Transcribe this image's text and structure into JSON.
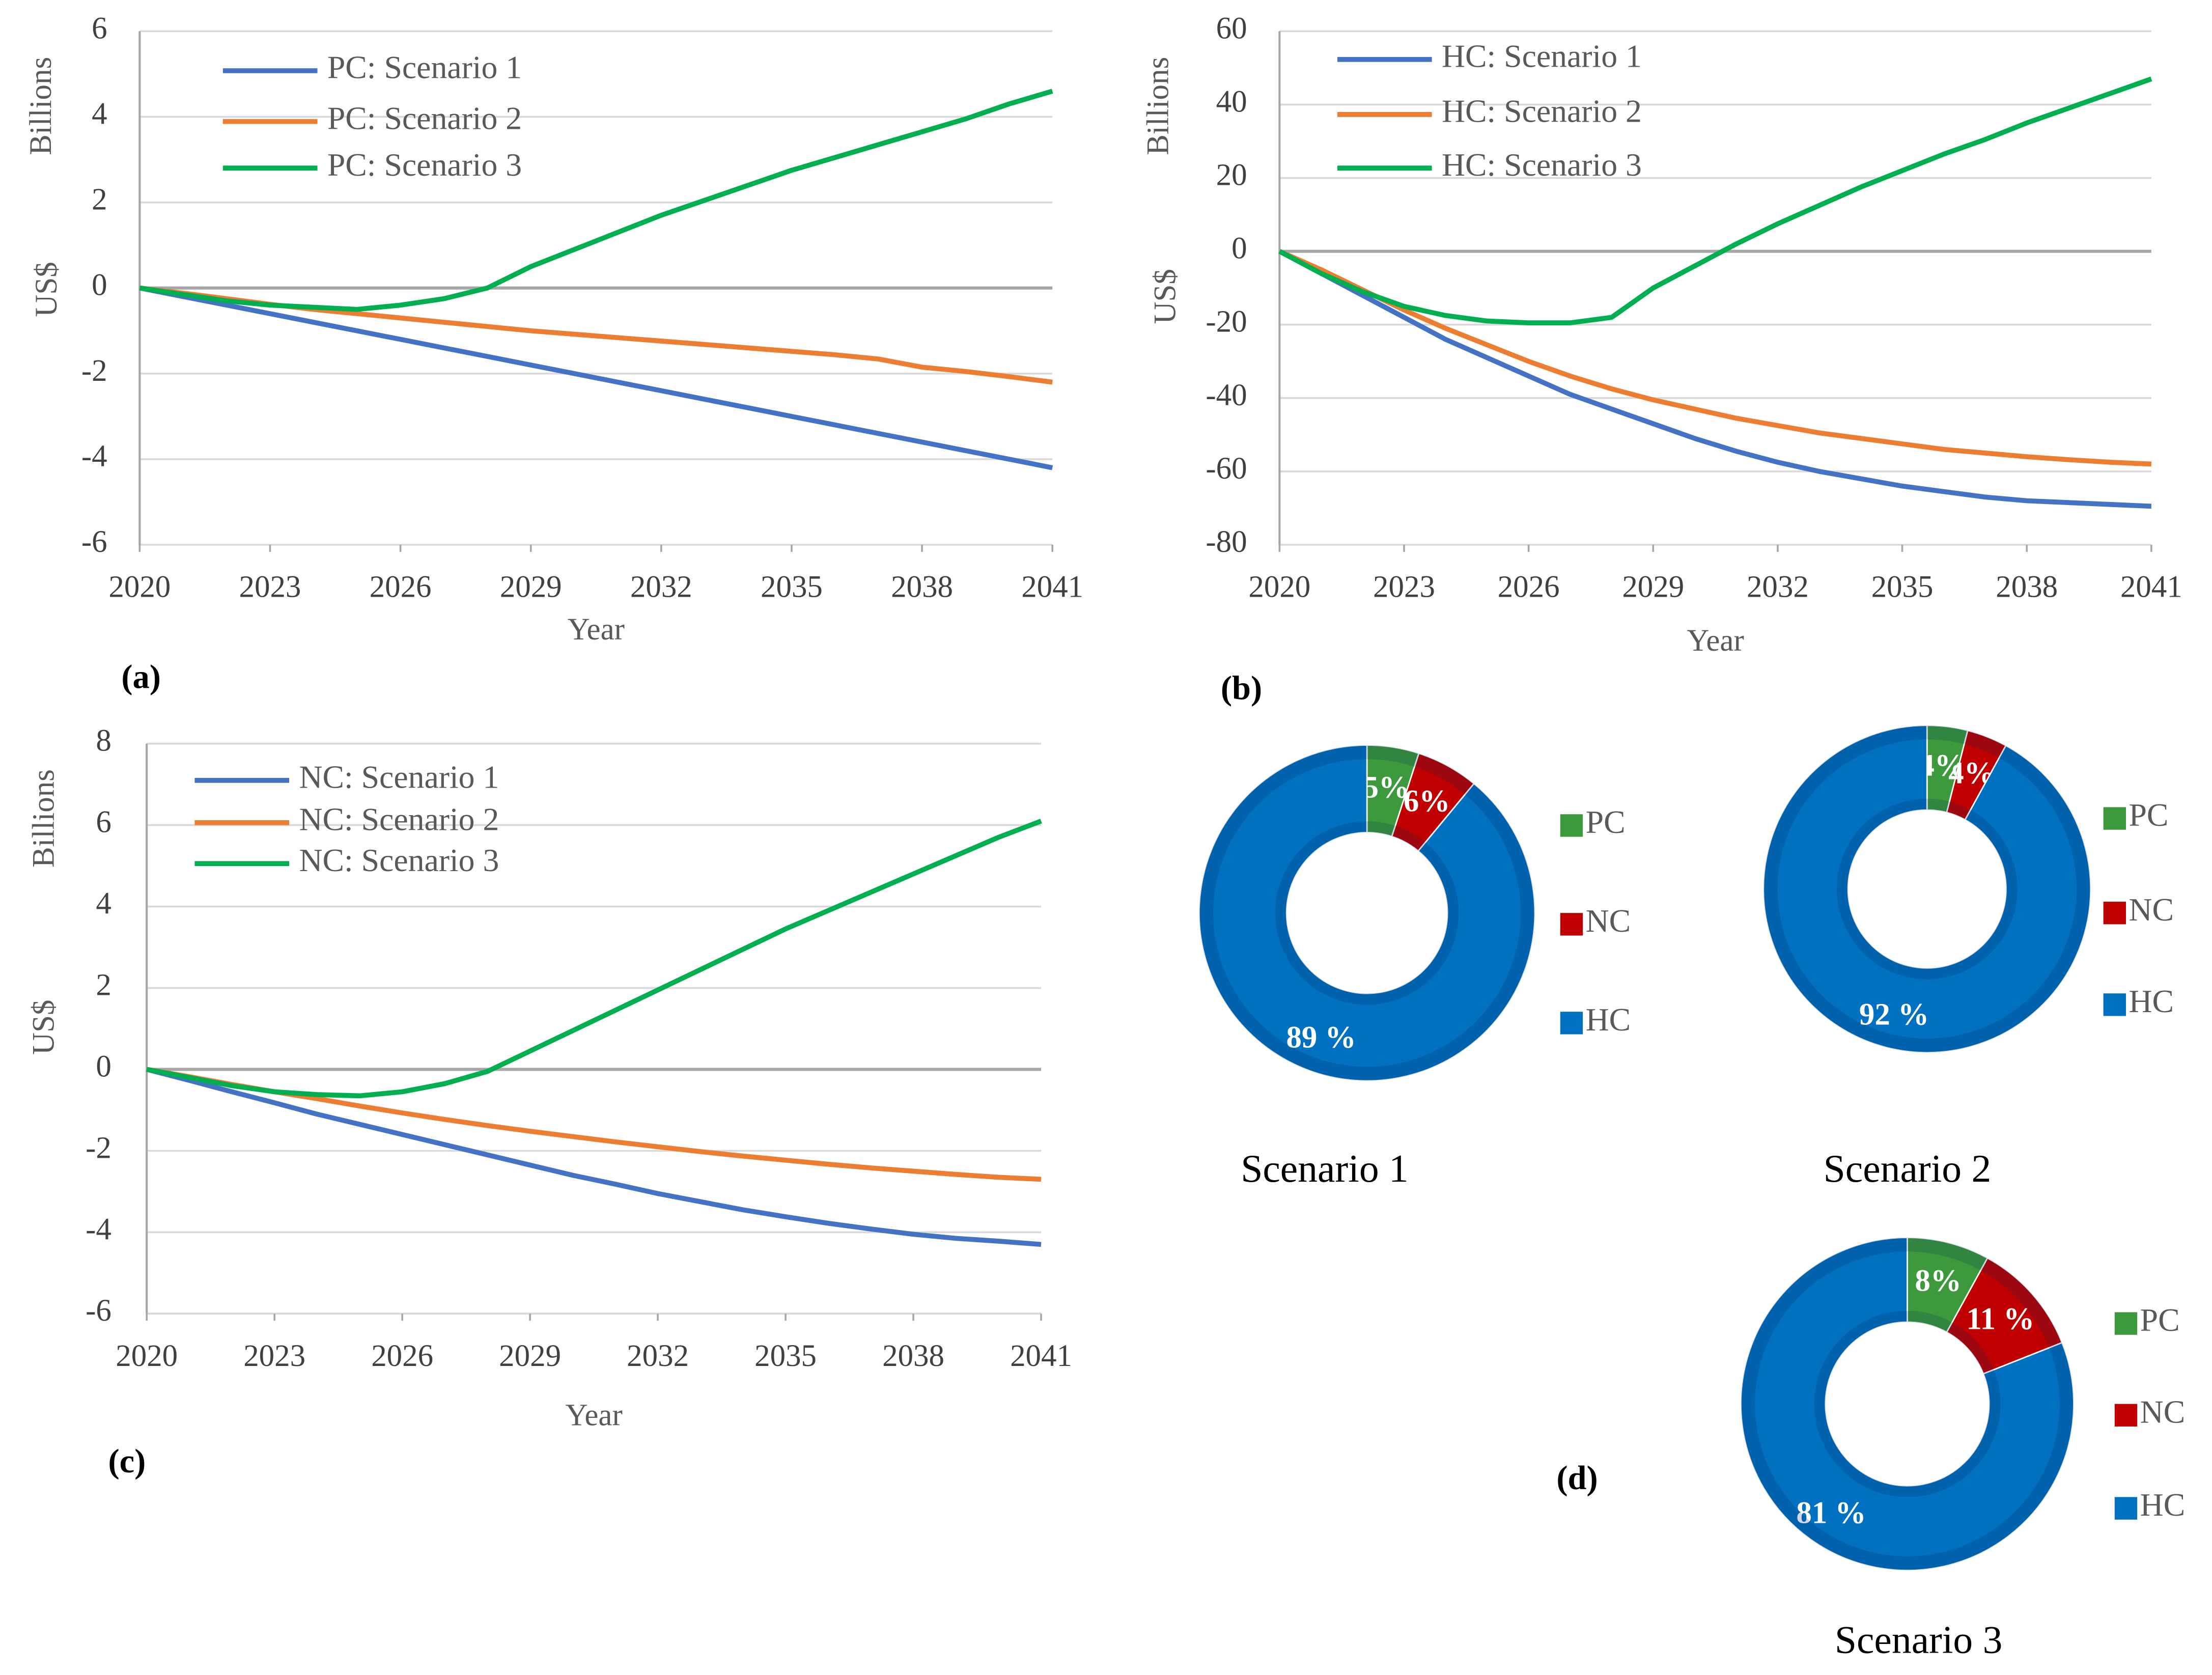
{
  "chart_data": [
    {
      "type": "line",
      "panel_label": "(a)",
      "x_label": "Year",
      "y_label": "US$",
      "y_unit": "Billions",
      "grid": true,
      "x": [
        2020,
        2021,
        2022,
        2023,
        2024,
        2025,
        2026,
        2027,
        2028,
        2029,
        2030,
        2031,
        2032,
        2033,
        2034,
        2035,
        2036,
        2037,
        2038,
        2039,
        2040,
        2041
      ],
      "xlim": [
        2020,
        2041
      ],
      "xticks": [
        2020,
        2023,
        2026,
        2029,
        2032,
        2035,
        2038,
        2041
      ],
      "ylim": [
        -6,
        6
      ],
      "yticks": [
        -6,
        -4,
        -2,
        0,
        2,
        4,
        6
      ],
      "series": [
        {
          "name": "PC: Scenario 1",
          "color": "#4472c4",
          "values": [
            0,
            -0.2,
            -0.4,
            -0.6,
            -0.8,
            -1.0,
            -1.2,
            -1.4,
            -1.6,
            -1.8,
            -2.0,
            -2.2,
            -2.4,
            -2.6,
            -2.8,
            -3.0,
            -3.2,
            -3.4,
            -3.6,
            -3.8,
            -4.0,
            -4.2
          ]
        },
        {
          "name": "PC: Scenario 2",
          "color": "#ed7d31",
          "values": [
            0,
            -0.12,
            -0.25,
            -0.38,
            -0.5,
            -0.6,
            -0.7,
            -0.8,
            -0.9,
            -1.0,
            -1.08,
            -1.16,
            -1.24,
            -1.32,
            -1.4,
            -1.48,
            -1.56,
            -1.66,
            -1.85,
            -1.95,
            -2.07,
            -2.2
          ]
        },
        {
          "name": "PC: Scenario 3",
          "color": "#00b050",
          "values": [
            0,
            -0.15,
            -0.3,
            -0.4,
            -0.45,
            -0.5,
            -0.4,
            -0.25,
            0,
            0.5,
            0.9,
            1.3,
            1.7,
            2.05,
            2.4,
            2.75,
            3.05,
            3.35,
            3.65,
            3.95,
            4.3,
            4.6
          ]
        }
      ]
    },
    {
      "type": "line",
      "panel_label": "(b)",
      "x_label": "Year",
      "y_label": "US$",
      "y_unit": "Billions",
      "grid": true,
      "x": [
        2020,
        2021,
        2022,
        2023,
        2024,
        2025,
        2026,
        2027,
        2028,
        2029,
        2030,
        2031,
        2032,
        2033,
        2034,
        2035,
        2036,
        2037,
        2038,
        2039,
        2040,
        2041
      ],
      "xlim": [
        2020,
        2041
      ],
      "xticks": [
        2020,
        2023,
        2026,
        2029,
        2032,
        2035,
        2038,
        2041
      ],
      "ylim": [
        -80,
        60
      ],
      "yticks": [
        -80,
        -60,
        -40,
        -20,
        0,
        20,
        40,
        60
      ],
      "series": [
        {
          "name": "HC: Scenario 1",
          "color": "#4472c4",
          "values": [
            0,
            -6,
            -12,
            -18,
            -24,
            -29,
            -34,
            -39,
            -43,
            -47,
            -51,
            -54.5,
            -57.5,
            -60,
            -62,
            -64,
            -65.5,
            -67,
            -68,
            -68.5,
            -69,
            -69.5
          ]
        },
        {
          "name": "HC: Scenario 2",
          "color": "#ed7d31",
          "values": [
            0,
            -5,
            -10.5,
            -16,
            -21,
            -25.5,
            -30,
            -34,
            -37.5,
            -40.5,
            -43,
            -45.5,
            -47.5,
            -49.5,
            -51,
            -52.5,
            -54,
            -55,
            -56,
            -56.8,
            -57.5,
            -58
          ]
        },
        {
          "name": "HC: Scenario 3",
          "color": "#00b050",
          "values": [
            0,
            -6,
            -11,
            -15,
            -17.5,
            -19,
            -19.5,
            -19.5,
            -18,
            -10,
            -4,
            2,
            7.5,
            12.5,
            17.5,
            22,
            26.5,
            30.5,
            35,
            39,
            43,
            47
          ]
        }
      ]
    },
    {
      "type": "line",
      "panel_label": "(c)",
      "x_label": "Year",
      "y_label": "US$",
      "y_unit": "Billions",
      "grid": true,
      "x": [
        2020,
        2021,
        2022,
        2023,
        2024,
        2025,
        2026,
        2027,
        2028,
        2029,
        2030,
        2031,
        2032,
        2033,
        2034,
        2035,
        2036,
        2037,
        2038,
        2039,
        2040,
        2041
      ],
      "xlim": [
        2020,
        2041
      ],
      "xticks": [
        2020,
        2023,
        2026,
        2029,
        2032,
        2035,
        2038,
        2041
      ],
      "ylim": [
        -6,
        8
      ],
      "yticks": [
        -6,
        -4,
        -2,
        0,
        2,
        4,
        6,
        8
      ],
      "series": [
        {
          "name": "NC: Scenario 1",
          "color": "#4472c4",
          "values": [
            0,
            -0.27,
            -0.55,
            -0.82,
            -1.1,
            -1.35,
            -1.6,
            -1.85,
            -2.1,
            -2.35,
            -2.6,
            -2.82,
            -3.05,
            -3.25,
            -3.45,
            -3.62,
            -3.78,
            -3.92,
            -4.05,
            -4.15,
            -4.22,
            -4.3
          ]
        },
        {
          "name": "NC: Scenario 2",
          "color": "#ed7d31",
          "values": [
            0,
            -0.18,
            -0.37,
            -0.55,
            -0.72,
            -0.9,
            -1.07,
            -1.23,
            -1.38,
            -1.52,
            -1.65,
            -1.78,
            -1.9,
            -2.02,
            -2.13,
            -2.23,
            -2.33,
            -2.42,
            -2.5,
            -2.58,
            -2.65,
            -2.7
          ]
        },
        {
          "name": "NC: Scenario 3",
          "color": "#00b050",
          "values": [
            0,
            -0.2,
            -0.4,
            -0.55,
            -0.62,
            -0.65,
            -0.55,
            -0.35,
            -0.05,
            0.45,
            0.95,
            1.45,
            1.95,
            2.45,
            2.95,
            3.45,
            3.9,
            4.35,
            4.8,
            5.25,
            5.7,
            6.1
          ]
        }
      ]
    },
    {
      "type": "donut",
      "title": "Scenario 1",
      "categories": [
        "PC",
        "NC",
        "HC"
      ],
      "values": [
        5,
        6,
        89
      ],
      "value_labels": [
        "5%",
        "6%",
        "89 %"
      ],
      "colors": [
        "#3c9a3c",
        "#c00000",
        "#0070c0"
      ]
    },
    {
      "type": "donut",
      "title": "Scenario 2",
      "categories": [
        "PC",
        "NC",
        "HC"
      ],
      "values": [
        4,
        4,
        92
      ],
      "value_labels": [
        "4%",
        "4%",
        "92 %"
      ],
      "colors": [
        "#3c9a3c",
        "#c00000",
        "#0070c0"
      ]
    },
    {
      "type": "donut",
      "title": "Scenario 3",
      "panel_label": "(d)",
      "categories": [
        "PC",
        "NC",
        "HC"
      ],
      "values": [
        8,
        11,
        81
      ],
      "value_labels": [
        "8%",
        "11 %",
        "81 %"
      ],
      "colors": [
        "#3c9a3c",
        "#c00000",
        "#0070c0"
      ]
    }
  ]
}
